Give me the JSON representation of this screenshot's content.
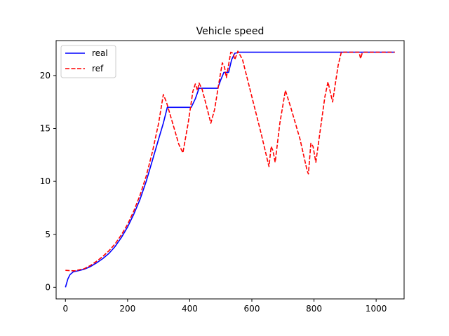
{
  "chart_data": {
    "type": "line",
    "title": "Vehicle speed",
    "xlabel": "",
    "ylabel": "",
    "xlim": [
      -30,
      1090
    ],
    "ylim": [
      -1.1,
      23.3
    ],
    "xticks": [
      0,
      200,
      400,
      600,
      800,
      1000
    ],
    "yticks": [
      0,
      5,
      10,
      15,
      20
    ],
    "grid": false,
    "legend_position": "top-left",
    "series": [
      {
        "name": "real",
        "color": "#0000ff",
        "style": "solid",
        "points": [
          [
            0,
            0
          ],
          [
            8,
            0.8
          ],
          [
            15,
            1.2
          ],
          [
            25,
            1.45
          ],
          [
            40,
            1.55
          ],
          [
            60,
            1.7
          ],
          [
            80,
            1.95
          ],
          [
            100,
            2.3
          ],
          [
            120,
            2.7
          ],
          [
            140,
            3.2
          ],
          [
            160,
            3.85
          ],
          [
            180,
            4.7
          ],
          [
            200,
            5.7
          ],
          [
            220,
            6.9
          ],
          [
            240,
            8.3
          ],
          [
            260,
            10.0
          ],
          [
            280,
            12.0
          ],
          [
            300,
            14.0
          ],
          [
            315,
            15.5
          ],
          [
            328,
            17.0
          ],
          [
            405,
            17.0
          ],
          [
            418,
            17.8
          ],
          [
            430,
            18.8
          ],
          [
            490,
            18.8
          ],
          [
            500,
            19.6
          ],
          [
            510,
            20.3
          ],
          [
            525,
            20.3
          ],
          [
            535,
            21.5
          ],
          [
            545,
            22.1
          ],
          [
            560,
            22.2
          ],
          [
            1060,
            22.2
          ]
        ]
      },
      {
        "name": "ref",
        "color": "#ff0000",
        "style": "dashed",
        "points": [
          [
            0,
            1.6
          ],
          [
            30,
            1.55
          ],
          [
            60,
            1.75
          ],
          [
            80,
            2.05
          ],
          [
            100,
            2.45
          ],
          [
            120,
            2.9
          ],
          [
            140,
            3.45
          ],
          [
            160,
            4.1
          ],
          [
            180,
            4.95
          ],
          [
            200,
            5.95
          ],
          [
            220,
            7.2
          ],
          [
            240,
            8.7
          ],
          [
            260,
            10.5
          ],
          [
            280,
            12.8
          ],
          [
            300,
            15.5
          ],
          [
            315,
            18.2
          ],
          [
            325,
            17.5
          ],
          [
            345,
            15.5
          ],
          [
            365,
            13.5
          ],
          [
            378,
            12.7
          ],
          [
            395,
            15.5
          ],
          [
            410,
            18.5
          ],
          [
            418,
            19.2
          ],
          [
            425,
            18.6
          ],
          [
            430,
            19.3
          ],
          [
            440,
            18.7
          ],
          [
            455,
            17.0
          ],
          [
            468,
            15.5
          ],
          [
            480,
            16.8
          ],
          [
            495,
            19.5
          ],
          [
            505,
            21.2
          ],
          [
            512,
            20.8
          ],
          [
            518,
            19.8
          ],
          [
            525,
            21.0
          ],
          [
            532,
            22.2
          ],
          [
            540,
            22.1
          ],
          [
            545,
            21.5
          ],
          [
            555,
            22.3
          ],
          [
            570,
            21.5
          ],
          [
            600,
            18.0
          ],
          [
            630,
            14.5
          ],
          [
            655,
            11.4
          ],
          [
            662,
            13.3
          ],
          [
            668,
            12.9
          ],
          [
            675,
            11.8
          ],
          [
            690,
            15.5
          ],
          [
            708,
            18.6
          ],
          [
            725,
            17.0
          ],
          [
            755,
            14.0
          ],
          [
            778,
            11.0
          ],
          [
            782,
            10.7
          ],
          [
            790,
            13.6
          ],
          [
            797,
            13.3
          ],
          [
            806,
            11.8
          ],
          [
            820,
            14.8
          ],
          [
            835,
            18.0
          ],
          [
            845,
            19.4
          ],
          [
            852,
            18.5
          ],
          [
            860,
            17.5
          ],
          [
            870,
            19.5
          ],
          [
            878,
            21.0
          ],
          [
            888,
            22.2
          ],
          [
            945,
            22.2
          ],
          [
            950,
            21.6
          ],
          [
            955,
            22.1
          ],
          [
            960,
            22.2
          ],
          [
            1060,
            22.2
          ]
        ]
      }
    ]
  }
}
